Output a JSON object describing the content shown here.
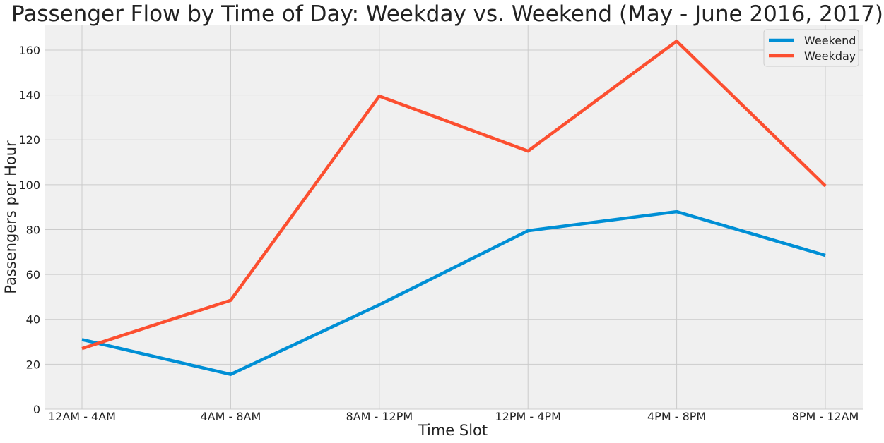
{
  "chart_data": {
    "type": "line",
    "title": "Passenger Flow by Time of Day: Weekday vs. Weekend (May - June 2016, 2017)",
    "xlabel": "Time Slot",
    "ylabel": "Passengers per Hour",
    "categories": [
      "12AM - 4AM",
      "4AM - 8AM",
      "8AM - 12PM",
      "12PM - 4PM",
      "4PM - 8PM",
      "8PM - 12AM"
    ],
    "ylim": [
      0,
      171
    ],
    "yticks": [
      0,
      20,
      40,
      60,
      80,
      100,
      120,
      140,
      160
    ],
    "grid": true,
    "legend_position": "top-right",
    "series": [
      {
        "name": "Weekend",
        "color": "#008fd5",
        "values": [
          31,
          15.5,
          46.5,
          79.5,
          88,
          68.5
        ]
      },
      {
        "name": "Weekday",
        "color": "#fc4f30",
        "values": [
          27,
          48.5,
          139.5,
          115,
          164,
          99.5
        ]
      }
    ],
    "background": "#f0f0f0"
  }
}
